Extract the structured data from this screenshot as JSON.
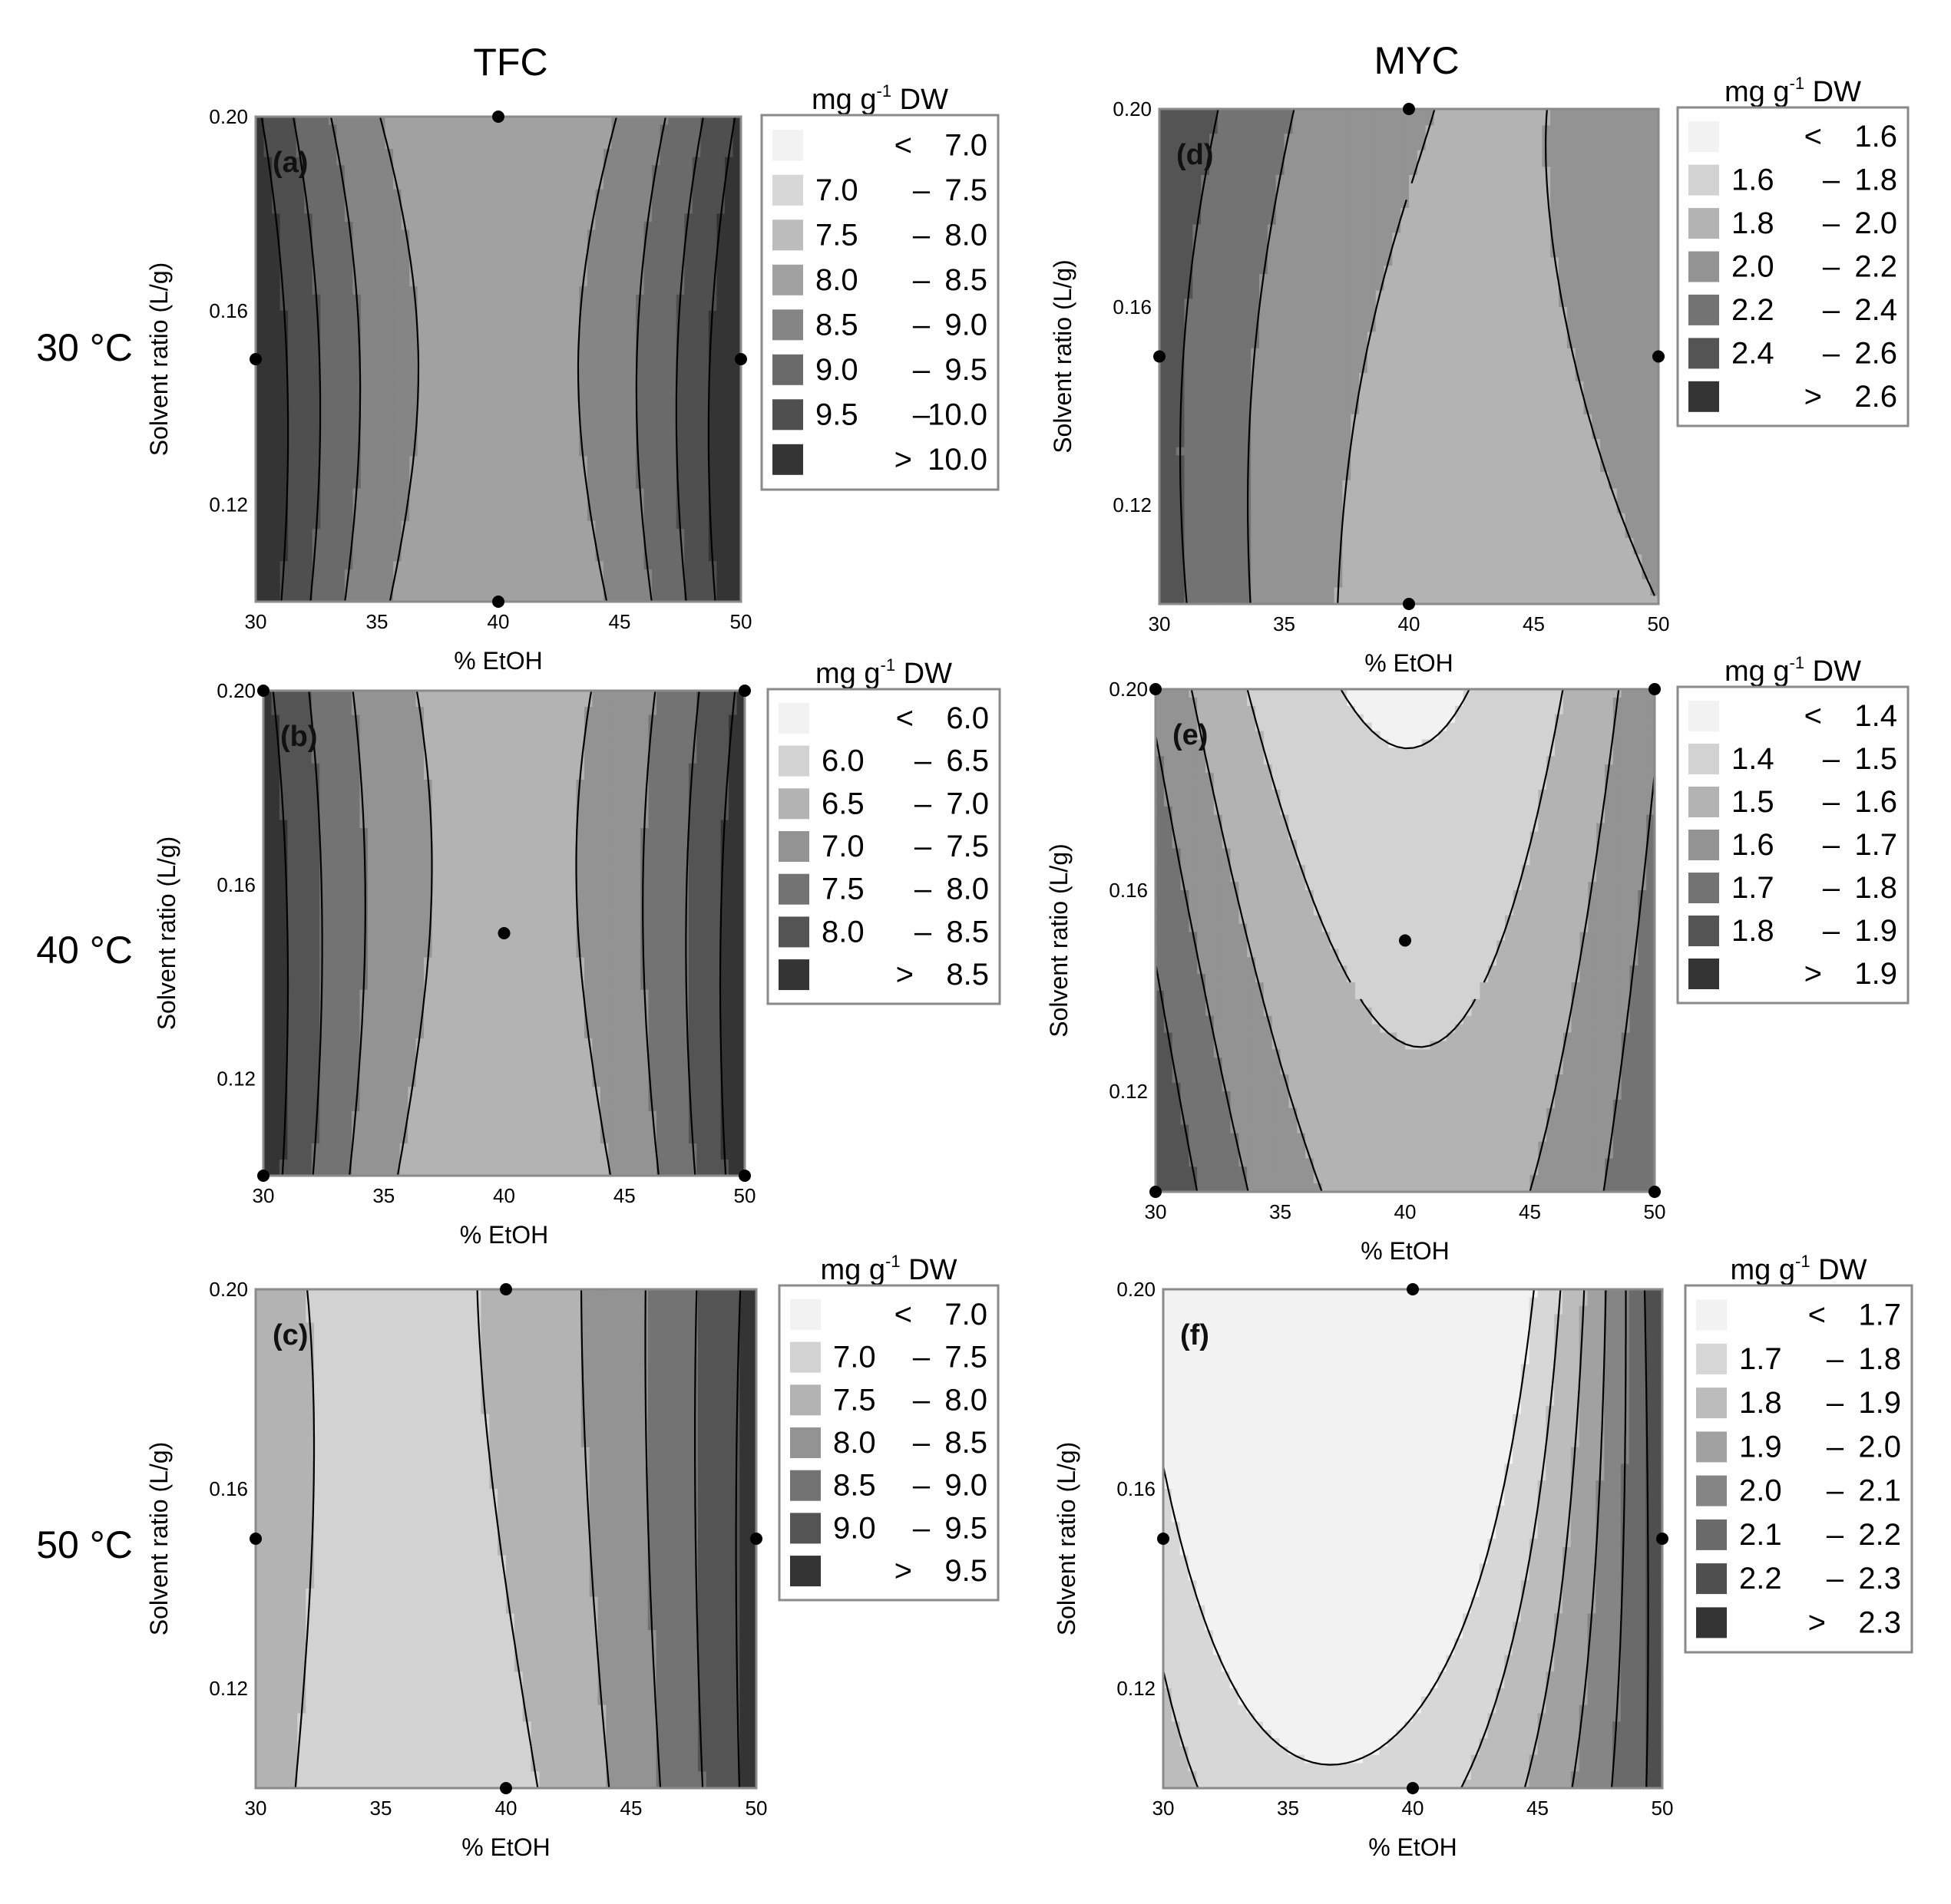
{
  "figure": {
    "column_titles": [
      "TFC",
      "MYC"
    ],
    "row_labels": [
      "30 °C",
      "40 °C",
      "50 °C"
    ]
  },
  "chart_data": [
    {
      "type": "contour",
      "panel": "(a)",
      "column": "TFC",
      "temperature": "30 °C",
      "xlabel": "% EtOH",
      "ylabel": "Solvent ratio (L/g)",
      "xlim": [
        30,
        50
      ],
      "ylim": [
        0.1,
        0.2
      ],
      "xticks": [
        "30",
        "35",
        "40",
        "45",
        "50"
      ],
      "yticks": [
        "0.12",
        "0.16",
        "0.20"
      ],
      "legend_title_main": "mg g",
      "legend_title_sup": "-1",
      "legend_title_rest": " DW",
      "legend": [
        {
          "lo": "<",
          "hi": "7.0"
        },
        {
          "lo": "7.0",
          "hi": "7.5"
        },
        {
          "lo": "7.5",
          "hi": "8.0"
        },
        {
          "lo": "8.0",
          "hi": "8.5"
        },
        {
          "lo": "8.5",
          "hi": "9.0"
        },
        {
          "lo": "9.0",
          "hi": "9.5"
        },
        {
          "lo": "9.5",
          "hi": "10.0"
        },
        {
          "lo": ">",
          "hi": "10.0"
        }
      ],
      "design_points": [
        [
          40,
          0.2
        ],
        [
          30,
          0.15
        ],
        [
          50,
          0.15
        ],
        [
          40,
          0.1
        ]
      ],
      "model": {
        "base": 8.0,
        "ax": 2.5,
        "cy": 1.0,
        "axy": -0.4,
        "ay": -1.0,
        "lo": 7.0,
        "step": 0.5,
        "n": 8
      }
    },
    {
      "type": "contour",
      "panel": "(b)",
      "column": "TFC",
      "temperature": "40 °C",
      "xlabel": "% EtOH",
      "ylabel": "Solvent ratio (L/g)",
      "xlim": [
        30,
        50
      ],
      "ylim": [
        0.1,
        0.2
      ],
      "xticks": [
        "30",
        "35",
        "40",
        "45",
        "50"
      ],
      "yticks": [
        "0.12",
        "0.16",
        "0.20"
      ],
      "legend_title_main": "mg g",
      "legend_title_sup": "-1",
      "legend_title_rest": " DW",
      "legend": [
        {
          "lo": "<",
          "hi": "6.0"
        },
        {
          "lo": "6.0",
          "hi": "6.5"
        },
        {
          "lo": "6.5",
          "hi": "7.0"
        },
        {
          "lo": "7.0",
          "hi": "7.5"
        },
        {
          "lo": "7.5",
          "hi": "8.0"
        },
        {
          "lo": "8.0",
          "hi": "8.5"
        },
        {
          "lo": ">",
          "hi": "8.5"
        }
      ],
      "design_points": [
        [
          30,
          0.2
        ],
        [
          50,
          0.2
        ],
        [
          40,
          0.15
        ],
        [
          30,
          0.1
        ],
        [
          50,
          0.1
        ]
      ],
      "model": {
        "base": 6.55,
        "ax": 2.3,
        "cy": 0.8,
        "axy": -0.4,
        "ay": -0.6,
        "lo": 6.0,
        "step": 0.5,
        "n": 7
      }
    },
    {
      "type": "contour",
      "panel": "(c)",
      "column": "TFC",
      "temperature": "50 °C",
      "xlabel": "% EtOH",
      "ylabel": "Solvent ratio (L/g)",
      "xlim": [
        30,
        50
      ],
      "ylim": [
        0.1,
        0.2
      ],
      "xticks": [
        "30",
        "35",
        "40",
        "45",
        "50"
      ],
      "yticks": [
        "0.12",
        "0.16",
        "0.20"
      ],
      "legend_title_main": "mg g",
      "legend_title_sup": "-1",
      "legend_title_rest": " DW",
      "legend": [
        {
          "lo": "<",
          "hi": "7.0"
        },
        {
          "lo": "7.0",
          "hi": "7.5"
        },
        {
          "lo": "7.5",
          "hi": "8.0"
        },
        {
          "lo": "8.0",
          "hi": "8.5"
        },
        {
          "lo": "8.5",
          "hi": "9.0"
        },
        {
          "lo": "9.0",
          "hi": "9.5"
        },
        {
          "lo": ">",
          "hi": "9.5"
        }
      ],
      "design_points": [
        [
          40,
          0.2
        ],
        [
          30,
          0.15
        ],
        [
          50,
          0.15
        ],
        [
          40,
          0.1
        ]
      ],
      "model": {
        "base": 7.35,
        "ax": 1.4,
        "bx": 1.0,
        "cy": 0.45,
        "axy": -0.3,
        "ay": -0.2,
        "lo": 7.0,
        "step": 0.5,
        "n": 7
      }
    },
    {
      "type": "contour",
      "panel": "(d)",
      "column": "MYC",
      "temperature": "30 °C",
      "xlabel": "% EtOH",
      "ylabel": "Solvent ratio (L/g)",
      "xlim": [
        30,
        50
      ],
      "ylim": [
        0.1,
        0.2
      ],
      "xticks": [
        "30",
        "35",
        "40",
        "45",
        "50"
      ],
      "yticks": [
        "0.12",
        "0.16",
        "0.20"
      ],
      "legend_title_main": "mg g",
      "legend_title_sup": "-1",
      "legend_title_rest": " DW",
      "legend": [
        {
          "lo": "<",
          "hi": "1.6"
        },
        {
          "lo": "1.6",
          "hi": "1.8"
        },
        {
          "lo": "1.8",
          "hi": "2.0"
        },
        {
          "lo": "2.0",
          "hi": "2.2"
        },
        {
          "lo": "2.2",
          "hi": "2.4"
        },
        {
          "lo": "2.4",
          "hi": "2.6"
        },
        {
          "lo": ">",
          "hi": "2.6"
        }
      ],
      "design_points": [
        [
          40,
          0.2
        ],
        [
          30,
          0.15
        ],
        [
          50,
          0.15
        ],
        [
          40,
          0.1
        ]
      ],
      "model": {
        "base": 1.9,
        "ax": 0.35,
        "bx": -0.25,
        "cy": 0.12,
        "by": -0.28,
        "bxy": 0.3,
        "lo": 1.6,
        "step": 0.2,
        "n": 7
      }
    },
    {
      "type": "contour",
      "panel": "(e)",
      "column": "MYC",
      "temperature": "40 °C",
      "xlabel": "% EtOH",
      "ylabel": "Solvent ratio (L/g)",
      "xlim": [
        30,
        50
      ],
      "ylim": [
        0.1,
        0.2
      ],
      "xticks": [
        "30",
        "35",
        "40",
        "45",
        "50"
      ],
      "yticks": [
        "0.12",
        "0.16",
        "0.20"
      ],
      "legend_title_main": "mg g",
      "legend_title_sup": "-1",
      "legend_title_rest": " DW",
      "legend": [
        {
          "lo": "<",
          "hi": "1.4"
        },
        {
          "lo": "1.4",
          "hi": "1.5"
        },
        {
          "lo": "1.5",
          "hi": "1.6"
        },
        {
          "lo": "1.6",
          "hi": "1.7"
        },
        {
          "lo": "1.7",
          "hi": "1.8"
        },
        {
          "lo": "1.8",
          "hi": "1.9"
        },
        {
          "lo": ">",
          "hi": "1.9"
        }
      ],
      "design_points": [
        [
          30,
          0.2
        ],
        [
          50,
          0.2
        ],
        [
          40,
          0.15
        ],
        [
          30,
          0.1
        ],
        [
          50,
          0.1
        ]
      ],
      "model": {
        "base": 1.55,
        "ax": 0.3,
        "bx": -0.05,
        "cy": -0.17,
        "bxy": 0.05,
        "lo": 1.4,
        "step": 0.1,
        "n": 7
      }
    },
    {
      "type": "contour",
      "panel": "(f)",
      "column": "MYC",
      "temperature": "50 °C",
      "xlabel": "% EtOH",
      "ylabel": "Solvent ratio (L/g)",
      "xlim": [
        30,
        50
      ],
      "ylim": [
        0.1,
        0.2
      ],
      "xticks": [
        "30",
        "35",
        "40",
        "45",
        "50"
      ],
      "yticks": [
        "0.12",
        "0.16",
        "0.20"
      ],
      "legend_title_main": "mg g",
      "legend_title_sup": "-1",
      "legend_title_rest": " DW",
      "legend": [
        {
          "lo": "<",
          "hi": "1.7"
        },
        {
          "lo": "1.7",
          "hi": "1.8"
        },
        {
          "lo": "1.8",
          "hi": "1.9"
        },
        {
          "lo": "1.9",
          "hi": "2.0"
        },
        {
          "lo": "2.0",
          "hi": "2.1"
        },
        {
          "lo": "2.1",
          "hi": "2.2"
        },
        {
          "lo": "2.2",
          "hi": "2.3"
        },
        {
          "lo": ">",
          "hi": "2.3"
        }
      ],
      "design_points": [
        [
          40,
          0.2
        ],
        [
          30,
          0.15
        ],
        [
          50,
          0.15
        ],
        [
          40,
          0.1
        ]
      ],
      "model": {
        "base": 1.75,
        "ax": 0.3,
        "bx": 0.2,
        "cy": -0.35,
        "axy": 0.25,
        "bxy": 0.1,
        "by": 0.05,
        "lo": 1.7,
        "step": 0.1,
        "n": 8
      }
    }
  ]
}
